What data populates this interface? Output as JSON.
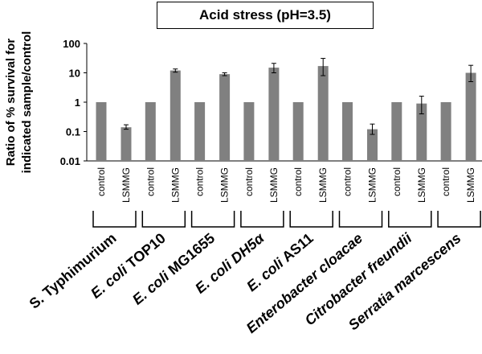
{
  "chart_data": {
    "type": "bar",
    "title": "Acid stress (pH=3.5)",
    "ylabel_lines": [
      "Ratio of % survival for",
      "indicated sample/control"
    ],
    "yscale": "log",
    "ylim": [
      0.01,
      100
    ],
    "ytick_labels": [
      "0.01",
      "0.1",
      "1",
      "10",
      "100"
    ],
    "ytick_values": [
      0.01,
      0.1,
      1,
      10,
      100
    ],
    "categories": [
      "control",
      "LSMMG"
    ],
    "groups": [
      {
        "name_parts": [
          {
            "t": "S. Typhimurium",
            "i": false
          }
        ],
        "values": [
          1,
          0.14
        ],
        "err_low": [
          null,
          0.12
        ],
        "err_high": [
          null,
          0.17
        ]
      },
      {
        "name_parts": [
          {
            "t": "E. coli",
            "i": true
          },
          {
            "t": " TOP10",
            "i": false
          }
        ],
        "values": [
          1,
          12
        ],
        "err_low": [
          null,
          10.5
        ],
        "err_high": [
          null,
          13.5
        ]
      },
      {
        "name_parts": [
          {
            "t": "E. coli",
            "i": true
          },
          {
            "t": " MG1655",
            "i": false
          }
        ],
        "values": [
          1,
          9
        ],
        "err_low": [
          null,
          8
        ],
        "err_high": [
          null,
          10
        ]
      },
      {
        "name_parts": [
          {
            "t": "E. coli DH5α",
            "i": true
          }
        ],
        "values": [
          1,
          15
        ],
        "err_low": [
          null,
          10
        ],
        "err_high": [
          null,
          21
        ]
      },
      {
        "name_parts": [
          {
            "t": "E. coli",
            "i": true
          },
          {
            "t": " AS11",
            "i": false
          }
        ],
        "values": [
          1,
          17
        ],
        "err_low": [
          null,
          8
        ],
        "err_high": [
          null,
          31
        ]
      },
      {
        "name_parts": [
          {
            "t": "Enterobacter cloacae",
            "i": true
          }
        ],
        "values": [
          1,
          0.12
        ],
        "err_low": [
          null,
          0.08
        ],
        "err_high": [
          null,
          0.18
        ]
      },
      {
        "name_parts": [
          {
            "t": "Citrobacter freundii",
            "i": true
          }
        ],
        "values": [
          1,
          0.9
        ],
        "err_low": [
          null,
          0.4
        ],
        "err_high": [
          null,
          1.6
        ]
      },
      {
        "name_parts": [
          {
            "t": "Serratia marcescens",
            "i": true
          }
        ],
        "values": [
          1,
          10
        ],
        "err_low": [
          null,
          5
        ],
        "err_high": [
          null,
          18
        ]
      }
    ],
    "bar_color": "#808080",
    "axis_color": "#000000"
  }
}
